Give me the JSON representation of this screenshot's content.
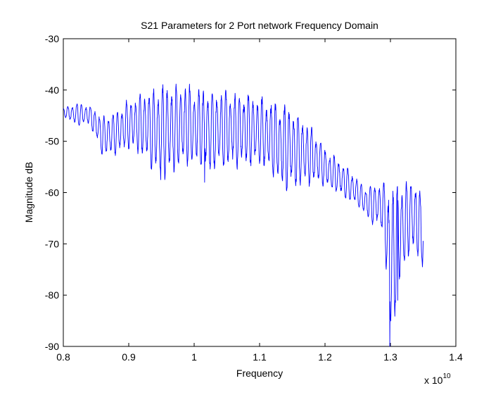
{
  "chart_data": {
    "type": "line",
    "title": "S21 Parameters for 2 Port network Frequency Domain",
    "xlabel": "Frequency",
    "ylabel": "Magnitude dB",
    "x_multiplier": {
      "base": "x 10",
      "exponent": "10"
    },
    "xlim": [
      0.8,
      1.4
    ],
    "ylim": [
      -90,
      -30
    ],
    "xticks": [
      "0.8",
      "0.9",
      "1",
      "1.1",
      "1.2",
      "1.3",
      "1.4"
    ],
    "yticks": [
      "-30",
      "-40",
      "-50",
      "-60",
      "-70",
      "-80",
      "-90"
    ],
    "grid": false,
    "line_color": "#0000ff",
    "series": [
      {
        "x_range": [
          0.8,
          1.35
        ],
        "envelope_upper": [
          [
            0.8,
            -43.5
          ],
          [
            0.82,
            -42.5
          ],
          [
            0.85,
            -43.5
          ],
          [
            0.86,
            -45.5
          ],
          [
            0.88,
            -44.0
          ],
          [
            0.9,
            -42.0
          ],
          [
            0.93,
            -40.0
          ],
          [
            0.95,
            -39.0
          ],
          [
            0.98,
            -39.0
          ],
          [
            1.0,
            -39.5
          ],
          [
            1.03,
            -40.0
          ],
          [
            1.06,
            -40.5
          ],
          [
            1.09,
            -41.0
          ],
          [
            1.12,
            -42.5
          ],
          [
            1.15,
            -43.5
          ],
          [
            1.18,
            -47.5
          ],
          [
            1.2,
            -51.5
          ],
          [
            1.22,
            -53.5
          ],
          [
            1.24,
            -56.0
          ],
          [
            1.26,
            -59.0
          ],
          [
            1.28,
            -58.0
          ],
          [
            1.3,
            -58.5
          ],
          [
            1.32,
            -58.0
          ],
          [
            1.34,
            -57.5
          ],
          [
            1.35,
            -62.0
          ]
        ],
        "envelope_lower": [
          [
            0.8,
            -45.0
          ],
          [
            0.82,
            -47.0
          ],
          [
            0.84,
            -46.5
          ],
          [
            0.86,
            -53.0
          ],
          [
            0.88,
            -52.5
          ],
          [
            0.9,
            -51.5
          ],
          [
            0.92,
            -52.5
          ],
          [
            0.95,
            -57.5
          ],
          [
            0.98,
            -55.0
          ],
          [
            1.0,
            -54.5
          ],
          [
            1.02,
            -56.0
          ],
          [
            1.05,
            -55.0
          ],
          [
            1.08,
            -54.5
          ],
          [
            1.11,
            -55.5
          ],
          [
            1.14,
            -59.5
          ],
          [
            1.17,
            -58.5
          ],
          [
            1.19,
            -58.0
          ],
          [
            1.21,
            -59.5
          ],
          [
            1.23,
            -61.0
          ],
          [
            1.25,
            -62.5
          ],
          [
            1.27,
            -66.0
          ],
          [
            1.29,
            -67.5
          ],
          [
            1.3,
            -90.0
          ],
          [
            1.31,
            -80.5
          ],
          [
            1.33,
            -71.0
          ],
          [
            1.35,
            -74.5
          ]
        ],
        "notable_minima": [
          {
            "x": 0.949,
            "y": -57.5
          },
          {
            "x": 1.016,
            "y": -58.0
          },
          {
            "x": 1.141,
            "y": -59.5
          },
          {
            "x": 1.299,
            "y": -90.0
          },
          {
            "x": 1.311,
            "y": -81.0
          },
          {
            "x": 1.349,
            "y": -74.5
          }
        ],
        "oscillation_period": 0.0069
      }
    ]
  }
}
